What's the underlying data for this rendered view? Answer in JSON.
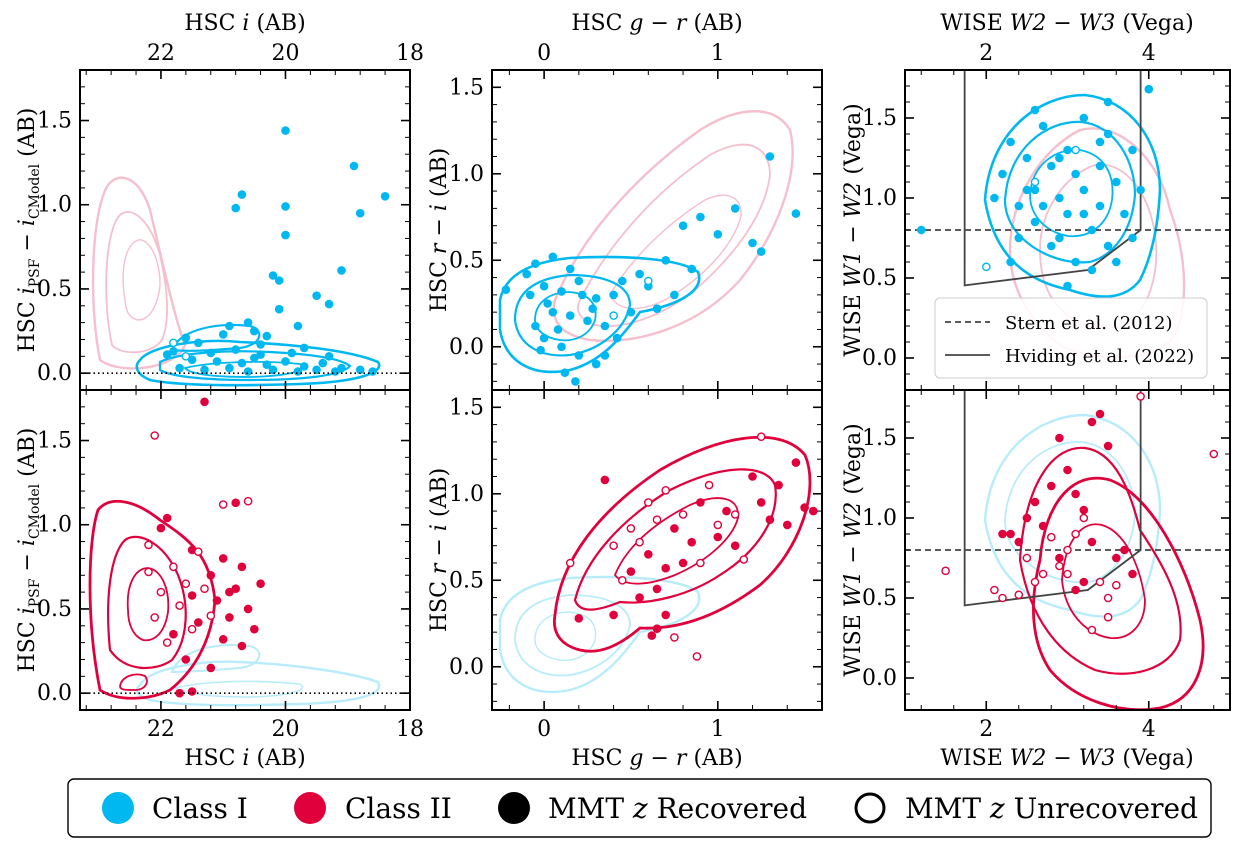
{
  "colors": {
    "class1": "#00b8f0",
    "class2": "#e0003c",
    "class1_light": "#b8ecfa",
    "class2_light": "#f5bfcd",
    "ref": "#444444"
  },
  "chart_data": [
    {
      "id": "A",
      "type": "scatter",
      "xlabel": "HSC i (AB)",
      "ylabel": "HSC i_PSF − i_CModel (AB)",
      "xlim": [
        23.3,
        18
      ],
      "ylim": [
        -0.1,
        1.8
      ],
      "xticks": [
        22,
        20,
        18
      ],
      "yticks": [
        0.0,
        0.5,
        1.0,
        1.5
      ],
      "xtick_labels": [
        "22",
        "20",
        "18"
      ],
      "ytick_labels": [
        "0.0",
        "0.5",
        "1.0",
        "1.5"
      ],
      "hline": 0.0,
      "class1": [
        [
          20.8,
          0.98
        ],
        [
          20.7,
          1.06
        ],
        [
          20.2,
          0.58
        ],
        [
          20.1,
          0.55
        ],
        [
          20.0,
          0.99
        ],
        [
          20.0,
          0.82
        ],
        [
          20.0,
          1.44
        ],
        [
          19.5,
          0.46
        ],
        [
          19.3,
          0.41
        ],
        [
          19.1,
          0.61
        ],
        [
          18.9,
          1.23
        ],
        [
          18.8,
          0.95
        ],
        [
          18.4,
          1.05
        ],
        [
          20.1,
          0.38
        ],
        [
          20.6,
          0.3
        ],
        [
          20.9,
          0.28
        ],
        [
          20.3,
          0.22
        ],
        [
          21.6,
          0.21
        ],
        [
          21.4,
          0.18
        ],
        [
          20.4,
          0.17
        ],
        [
          19.7,
          0.15
        ],
        [
          21.8,
          0.13
        ],
        [
          21.2,
          0.12
        ],
        [
          20.8,
          0.14
        ],
        [
          19.9,
          0.12
        ],
        [
          19.3,
          0.1
        ],
        [
          21.5,
          0.08
        ],
        [
          21.1,
          0.07
        ],
        [
          20.7,
          0.06
        ],
        [
          20.5,
          0.09
        ],
        [
          20.3,
          0.05
        ],
        [
          20.0,
          0.07
        ],
        [
          19.7,
          0.04
        ],
        [
          19.4,
          0.06
        ],
        [
          19.1,
          0.03
        ],
        [
          18.8,
          0.02
        ],
        [
          21.7,
          0.03
        ],
        [
          21.3,
          0.02
        ],
        [
          20.9,
          0.03
        ],
        [
          20.6,
          0.01
        ],
        [
          20.2,
          0.02
        ],
        [
          19.8,
          0.01
        ],
        [
          19.5,
          0.02
        ],
        [
          19.2,
          0.01
        ],
        [
          18.6,
          0.01
        ],
        [
          20.5,
          0.25
        ],
        [
          19.8,
          0.28
        ],
        [
          21.0,
          0.23
        ],
        [
          21.9,
          0.11
        ],
        [
          20.4,
          0.11
        ]
      ],
      "class1_open": [
        [
          21.8,
          0.18
        ],
        [
          21.6,
          0.1
        ]
      ],
      "class2_open": [],
      "class2": []
    },
    {
      "id": "B",
      "type": "scatter",
      "xlabel": "HSC g − r (AB)",
      "ylabel": "HSC r − i (AB)",
      "xlim": [
        -0.3,
        1.6
      ],
      "ylim": [
        -0.25,
        1.6
      ],
      "xticks": [
        0,
        1
      ],
      "yticks": [
        0.0,
        0.5,
        1.0,
        1.5
      ],
      "xtick_labels": [
        "0",
        "1"
      ],
      "ytick_labels": [
        "0.0",
        "0.5",
        "1.0",
        "1.5"
      ],
      "class1": [
        [
          -0.22,
          0.33
        ],
        [
          -0.1,
          0.42
        ],
        [
          -0.05,
          0.48
        ],
        [
          0.05,
          0.52
        ],
        [
          0.15,
          0.45
        ],
        [
          -0.08,
          0.3
        ],
        [
          0.0,
          0.35
        ],
        [
          0.1,
          0.32
        ],
        [
          0.2,
          0.38
        ],
        [
          0.3,
          0.28
        ],
        [
          0.05,
          0.2
        ],
        [
          0.15,
          0.18
        ],
        [
          0.25,
          0.15
        ],
        [
          0.35,
          0.12
        ],
        [
          -0.05,
          0.12
        ],
        [
          0.0,
          0.05
        ],
        [
          0.1,
          0.0
        ],
        [
          0.2,
          -0.05
        ],
        [
          0.3,
          -0.1
        ],
        [
          0.12,
          -0.15
        ],
        [
          0.18,
          -0.2
        ],
        [
          0.4,
          0.3
        ],
        [
          0.45,
          0.38
        ],
        [
          0.55,
          0.42
        ],
        [
          0.6,
          0.35
        ],
        [
          0.5,
          0.2
        ],
        [
          0.42,
          0.05
        ],
        [
          0.35,
          -0.05
        ],
        [
          0.7,
          0.5
        ],
        [
          0.8,
          0.7
        ],
        [
          0.9,
          0.75
        ],
        [
          1.0,
          0.65
        ],
        [
          1.1,
          0.8
        ],
        [
          1.2,
          0.6
        ],
        [
          1.3,
          1.1
        ],
        [
          1.45,
          0.77
        ],
        [
          1.25,
          0.55
        ],
        [
          0.65,
          0.22
        ],
        [
          0.85,
          0.45
        ],
        [
          0.75,
          0.3
        ],
        [
          0.02,
          0.25
        ],
        [
          0.08,
          0.1
        ],
        [
          0.28,
          0.22
        ],
        [
          0.22,
          0.3
        ],
        [
          -0.02,
          -0.02
        ]
      ],
      "class1_open": [
        [
          0.6,
          0.38
        ],
        [
          0.4,
          0.18
        ]
      ],
      "class2_open": [],
      "class2": []
    },
    {
      "id": "C",
      "type": "scatter",
      "xlabel": "WISE W2 − W3 (Vega)",
      "ylabel": "WISE W1 − W2 (Vega)",
      "xlim": [
        1.0,
        5.0
      ],
      "ylim": [
        -0.2,
        1.8
      ],
      "xticks": [
        2,
        4
      ],
      "yticks": [
        0.0,
        0.5,
        1.0,
        1.5
      ],
      "xtick_labels": [
        "2",
        "4"
      ],
      "ytick_labels": [
        "0.0",
        "0.5",
        "1.0",
        "1.5"
      ],
      "stern": 0.8,
      "hviding": [
        [
          1.734,
          1.8
        ],
        [
          1.734,
          0.454
        ],
        [
          3.25,
          0.55
        ],
        [
          3.9,
          0.8
        ],
        [
          3.9,
          1.8
        ]
      ],
      "class1": [
        [
          1.2,
          0.8
        ],
        [
          2.1,
          1.0
        ],
        [
          2.2,
          1.15
        ],
        [
          2.3,
          1.35
        ],
        [
          2.4,
          0.95
        ],
        [
          2.5,
          1.25
        ],
        [
          2.6,
          1.05
        ],
        [
          2.6,
          0.85
        ],
        [
          2.7,
          1.45
        ],
        [
          2.8,
          1.2
        ],
        [
          2.8,
          0.7
        ],
        [
          2.9,
          1.0
        ],
        [
          3.0,
          1.3
        ],
        [
          3.0,
          0.9
        ],
        [
          3.1,
          1.15
        ],
        [
          3.1,
          0.6
        ],
        [
          3.2,
          1.5
        ],
        [
          3.2,
          1.05
        ],
        [
          3.3,
          0.8
        ],
        [
          3.4,
          1.2
        ],
        [
          3.4,
          0.95
        ],
        [
          3.5,
          1.4
        ],
        [
          3.5,
          0.7
        ],
        [
          3.6,
          1.1
        ],
        [
          3.7,
          0.9
        ],
        [
          3.8,
          1.3
        ],
        [
          3.9,
          1.05
        ],
        [
          4.0,
          1.68
        ],
        [
          2.4,
          0.75
        ],
        [
          2.5,
          1.05
        ],
        [
          2.7,
          0.95
        ],
        [
          2.9,
          1.25
        ],
        [
          3.3,
          0.55
        ],
        [
          3.6,
          0.6
        ],
        [
          2.3,
          0.6
        ],
        [
          3.0,
          0.45
        ],
        [
          3.5,
          1.6
        ],
        [
          2.6,
          1.55
        ],
        [
          3.8,
          0.75
        ],
        [
          2.9,
          0.75
        ],
        [
          3.2,
          0.9
        ],
        [
          3.4,
          1.35
        ]
      ],
      "class1_open": [
        [
          2.0,
          0.57
        ],
        [
          2.6,
          1.1
        ],
        [
          3.1,
          1.3
        ]
      ],
      "class2_open": [],
      "class2": []
    },
    {
      "id": "D",
      "type": "scatter",
      "xlabel": "HSC i (AB)",
      "ylabel": "HSC i_PSF − i_CModel (AB)",
      "xlim": [
        23.3,
        18
      ],
      "ylim": [
        -0.1,
        1.8
      ],
      "xticks": [
        22,
        20,
        18
      ],
      "yticks": [
        0.0,
        0.5,
        1.0,
        1.5
      ],
      "xtick_labels": [
        "22",
        "20",
        "18"
      ],
      "ytick_labels": [
        "0.0",
        "0.5",
        "1.0",
        "1.5"
      ],
      "hline": 0.0,
      "class2": [
        [
          21.3,
          1.73
        ],
        [
          21.9,
          1.04
        ],
        [
          22.0,
          0.98
        ],
        [
          20.8,
          1.13
        ],
        [
          21.5,
          0.85
        ],
        [
          21.0,
          0.8
        ],
        [
          20.7,
          0.75
        ],
        [
          21.2,
          0.7
        ],
        [
          20.4,
          0.65
        ],
        [
          20.8,
          0.62
        ],
        [
          21.5,
          0.58
        ],
        [
          21.1,
          0.55
        ],
        [
          20.6,
          0.5
        ],
        [
          20.9,
          0.45
        ],
        [
          21.4,
          0.42
        ],
        [
          20.5,
          0.38
        ],
        [
          21.8,
          0.35
        ],
        [
          21.0,
          0.32
        ],
        [
          20.7,
          0.28
        ],
        [
          21.6,
          0.2
        ],
        [
          21.2,
          0.15
        ],
        [
          21.7,
          0.0
        ],
        [
          21.5,
          0.01
        ],
        [
          20.9,
          0.6
        ]
      ],
      "class2_open": [
        [
          22.1,
          1.53
        ],
        [
          21.0,
          1.12
        ],
        [
          20.6,
          1.14
        ],
        [
          22.2,
          0.88
        ],
        [
          21.8,
          0.75
        ],
        [
          21.6,
          0.65
        ],
        [
          22.0,
          0.6
        ],
        [
          21.3,
          0.62
        ],
        [
          21.7,
          0.52
        ],
        [
          22.1,
          0.45
        ],
        [
          21.5,
          0.38
        ],
        [
          21.9,
          0.3
        ],
        [
          21.2,
          0.46
        ],
        [
          22.2,
          0.72
        ],
        [
          21.4,
          0.84
        ]
      ],
      "class1": [],
      "class1_open": []
    },
    {
      "id": "E",
      "type": "scatter",
      "xlabel": "HSC g − r (AB)",
      "ylabel": "HSC r − i (AB)",
      "xlim": [
        -0.3,
        1.6
      ],
      "ylim": [
        -0.25,
        1.6
      ],
      "xticks": [
        0,
        1
      ],
      "yticks": [
        0.0,
        0.5,
        1.0,
        1.5
      ],
      "xtick_labels": [
        "0",
        "1"
      ],
      "ytick_labels": [
        "0.0",
        "0.5",
        "1.0",
        "1.5"
      ],
      "class2": [
        [
          0.35,
          1.08
        ],
        [
          0.2,
          0.28
        ],
        [
          0.4,
          0.3
        ],
        [
          0.5,
          0.55
        ],
        [
          0.6,
          0.65
        ],
        [
          0.65,
          0.45
        ],
        [
          0.7,
          0.3
        ],
        [
          0.65,
          0.22
        ],
        [
          0.75,
          0.8
        ],
        [
          0.8,
          0.6
        ],
        [
          0.9,
          0.95
        ],
        [
          1.0,
          0.75
        ],
        [
          1.05,
          0.9
        ],
        [
          1.1,
          0.7
        ],
        [
          1.2,
          1.1
        ],
        [
          1.25,
          0.95
        ],
        [
          1.3,
          0.85
        ],
        [
          1.35,
          1.05
        ],
        [
          1.4,
          0.82
        ],
        [
          1.45,
          1.18
        ],
        [
          1.5,
          0.92
        ],
        [
          1.55,
          0.9
        ],
        [
          0.55,
          0.4
        ],
        [
          0.85,
          0.72
        ],
        [
          0.62,
          0.18
        ],
        [
          0.7,
          0.57
        ]
      ],
      "class2_open": [
        [
          0.15,
          0.6
        ],
        [
          0.45,
          0.5
        ],
        [
          0.55,
          0.72
        ],
        [
          0.6,
          0.95
        ],
        [
          0.7,
          1.02
        ],
        [
          0.8,
          0.88
        ],
        [
          0.9,
          0.6
        ],
        [
          1.0,
          0.82
        ],
        [
          1.1,
          0.88
        ],
        [
          1.25,
          1.33
        ],
        [
          0.75,
          0.17
        ],
        [
          0.88,
          0.06
        ],
        [
          0.5,
          0.8
        ],
        [
          0.65,
          0.85
        ],
        [
          0.95,
          1.05
        ],
        [
          1.15,
          0.62
        ],
        [
          0.4,
          0.7
        ]
      ],
      "class1": [],
      "class1_open": []
    },
    {
      "id": "F",
      "type": "scatter",
      "xlabel": "WISE W2 − W3 (Vega)",
      "ylabel": "WISE W1 − W2 (Vega)",
      "xlim": [
        1.0,
        5.0
      ],
      "ylim": [
        -0.2,
        1.8
      ],
      "xticks": [
        2,
        4
      ],
      "yticks": [
        0.0,
        0.5,
        1.0,
        1.5
      ],
      "xtick_labels": [
        "2",
        "4"
      ],
      "ytick_labels": [
        "0.0",
        "0.5",
        "1.0",
        "1.5"
      ],
      "stern": 0.8,
      "hviding": [
        [
          1.734,
          1.8
        ],
        [
          1.734,
          0.454
        ],
        [
          3.25,
          0.55
        ],
        [
          3.9,
          0.8
        ],
        [
          3.9,
          1.8
        ]
      ],
      "class2": [
        [
          2.2,
          0.9
        ],
        [
          2.4,
          0.85
        ],
        [
          2.6,
          1.1
        ],
        [
          2.7,
          0.95
        ],
        [
          2.8,
          1.2
        ],
        [
          2.9,
          0.75
        ],
        [
          3.0,
          1.3
        ],
        [
          3.1,
          0.55
        ],
        [
          3.2,
          1.05
        ],
        [
          3.3,
          0.85
        ],
        [
          3.4,
          1.65
        ],
        [
          3.5,
          1.45
        ],
        [
          3.1,
          1.15
        ],
        [
          2.5,
          1.0
        ],
        [
          2.3,
          0.9
        ],
        [
          3.6,
          0.75
        ],
        [
          3.7,
          0.8
        ],
        [
          3.8,
          0.65
        ],
        [
          2.9,
          1.5
        ],
        [
          3.2,
          0.6
        ],
        [
          3.3,
          1.6
        ]
      ],
      "class2_open": [
        [
          1.5,
          0.67
        ],
        [
          2.1,
          0.55
        ],
        [
          2.2,
          0.5
        ],
        [
          2.4,
          0.52
        ],
        [
          2.6,
          0.6
        ],
        [
          2.7,
          0.65
        ],
        [
          2.9,
          0.7
        ],
        [
          3.0,
          0.8
        ],
        [
          3.1,
          0.9
        ],
        [
          3.2,
          1.0
        ],
        [
          3.4,
          0.6
        ],
        [
          3.5,
          0.5
        ],
        [
          3.6,
          0.58
        ],
        [
          3.3,
          0.3
        ],
        [
          3.5,
          0.38
        ],
        [
          3.9,
          1.76
        ],
        [
          4.8,
          1.4
        ],
        [
          2.8,
          0.88
        ],
        [
          2.5,
          0.75
        ],
        [
          3.0,
          0.65
        ]
      ],
      "class1": [],
      "class1_open": []
    }
  ],
  "legend_inset": {
    "stern": "Stern et al. (2012)",
    "hviding": "Hviding et al. (2022)"
  },
  "legend_bottom": {
    "class1": "Class I",
    "class2": "Class II",
    "recovered": "MMT z Recovered",
    "unrecovered": "MMT z Unrecovered"
  }
}
